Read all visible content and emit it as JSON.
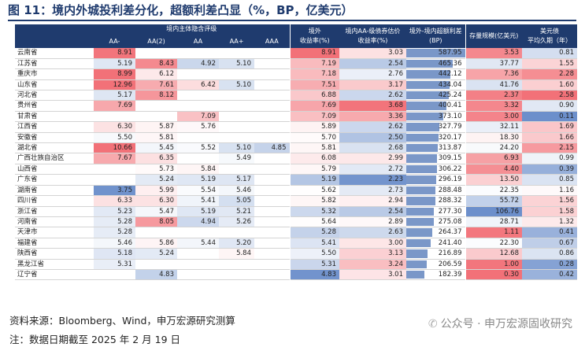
{
  "title": "图 11：境内外城投利差分化，超额利差凸显（%，BP，亿美元）",
  "headers": {
    "group_rating": "境内主体隐含评级",
    "ratings": [
      "AA-",
      "AA(2)",
      "AA",
      "AA+",
      "AAA"
    ],
    "offshore_yield": "境外\n收益率(%)",
    "onshore_yield": "境内AA-级债券估价\n收益率(%)",
    "excess_spread": "境外-境内超额利差\n(BP)",
    "outstanding": "存量规模(亿美元)",
    "duration": "美元债\n平均久期（年）"
  },
  "rows": [
    {
      "name": "云南省",
      "r": [
        "8.91",
        "",
        "",
        "",
        ""
      ],
      "off": "8.91",
      "on": "3.03",
      "sp": "587.95",
      "stock": "3.53",
      "dur": "0.81"
    },
    {
      "name": "江苏省",
      "r": [
        "5.19",
        "8.43",
        "4.92",
        "5.10",
        ""
      ],
      "off": "7.19",
      "on": "2.54",
      "sp": "465.36",
      "stock": "37.77",
      "dur": "1.55"
    },
    {
      "name": "重庆市",
      "r": [
        "8.99",
        "6.12",
        "",
        "",
        ""
      ],
      "off": "7.18",
      "on": "2.76",
      "sp": "442.12",
      "stock": "7.36",
      "dur": "2.28"
    },
    {
      "name": "山东省",
      "r": [
        "12.96",
        "7.61",
        "6.42",
        "5.10",
        ""
      ],
      "off": "7.51",
      "on": "3.17",
      "sp": "434.04",
      "stock": "41.76",
      "dur": "1.60"
    },
    {
      "name": "河北省",
      "r": [
        "5.17",
        "8.12",
        "",
        "",
        ""
      ],
      "off": "6.88",
      "on": "2.62",
      "sp": "425.24",
      "stock": "2.37",
      "dur": "2.58"
    },
    {
      "name": "贵州省",
      "r": [
        "7.69",
        "",
        "",
        "",
        ""
      ],
      "off": "7.69",
      "on": "3.68",
      "sp": "400.41",
      "stock": "3.32",
      "dur": "0.90"
    },
    {
      "name": "甘肃省",
      "r": [
        "",
        "",
        "7.09",
        "",
        ""
      ],
      "off": "7.09",
      "on": "3.36",
      "sp": "373.10",
      "stock": "3.00",
      "dur": "0.11"
    },
    {
      "name": "江西省",
      "r": [
        "6.30",
        "5.87",
        "5.76",
        "",
        ""
      ],
      "off": "5.89",
      "on": "2.62",
      "sp": "327.79",
      "stock": "32.11",
      "dur": "1.69"
    },
    {
      "name": "安徽省",
      "r": [
        "5.50",
        "5.81",
        "",
        "",
        ""
      ],
      "off": "5.70",
      "on": "2.50",
      "sp": "320.17",
      "stock": "18.30",
      "dur": "1.66"
    },
    {
      "name": "湖北省",
      "r": [
        "10.66",
        "5.45",
        "5.52",
        "5.10",
        "4.85"
      ],
      "off": "5.81",
      "on": "2.68",
      "sp": "313.87",
      "stock": "24.20",
      "dur": "2.15"
    },
    {
      "name": "广西壮族自治区",
      "r": [
        "7.67",
        "6.35",
        "",
        "5.49",
        ""
      ],
      "off": "6.08",
      "on": "2.99",
      "sp": "309.15",
      "stock": "6.93",
      "dur": "0.99"
    },
    {
      "name": "山西省",
      "r": [
        "",
        "5.73",
        "5.84",
        "",
        ""
      ],
      "off": "5.79",
      "on": "2.72",
      "sp": "306.22",
      "stock": "4.40",
      "dur": "0.39"
    },
    {
      "name": "广东省",
      "r": [
        "",
        "5.24",
        "5.19",
        "5.17",
        ""
      ],
      "off": "5.19",
      "on": "2.23",
      "sp": "296.19",
      "stock": "13.50",
      "dur": "0.85"
    },
    {
      "name": "湖南省",
      "r": [
        "3.75",
        "5.99",
        "5.54",
        "5.46",
        ""
      ],
      "off": "5.62",
      "on": "2.73",
      "sp": "288.48",
      "stock": "22.35",
      "dur": "1.16"
    },
    {
      "name": "四川省",
      "r": [
        "6.33",
        "6.30",
        "5.41",
        "5.05",
        ""
      ],
      "off": "5.82",
      "on": "2.94",
      "sp": "288.32",
      "stock": "55.72",
      "dur": "1.56"
    },
    {
      "name": "浙江省",
      "r": [
        "5.23",
        "5.47",
        "5.19",
        "5.21",
        ""
      ],
      "off": "5.32",
      "on": "2.54",
      "sp": "277.30",
      "stock": "106.76",
      "dur": "1.58"
    },
    {
      "name": "河南省",
      "r": [
        "5.28",
        "8.05",
        "4.94",
        "5.26",
        ""
      ],
      "off": "5.64",
      "on": "2.89",
      "sp": "275.08",
      "stock": "28.71",
      "dur": "1.32"
    },
    {
      "name": "天津市",
      "r": [
        "5.28",
        "",
        "",
        "",
        ""
      ],
      "off": "5.28",
      "on": "2.63",
      "sp": "264.37",
      "stock": "1.11",
      "dur": "0.41"
    },
    {
      "name": "福建省",
      "r": [
        "5.46",
        "5.86",
        "5.44",
        "5.20",
        ""
      ],
      "off": "5.41",
      "on": "3.00",
      "sp": "241.40",
      "stock": "22.30",
      "dur": "0.67"
    },
    {
      "name": "陕西省",
      "r": [
        "5.18",
        "5.24",
        "",
        "5.84",
        ""
      ],
      "off": "5.50",
      "on": "3.13",
      "sp": "216.89",
      "stock": "12.68",
      "dur": "0.86"
    },
    {
      "name": "黑龙江省",
      "r": [
        "5.31",
        "",
        "",
        "",
        ""
      ],
      "off": "5.31",
      "on": "3.24",
      "sp": "206.59",
      "stock": "1.00",
      "dur": "0.28"
    },
    {
      "name": "辽宁省",
      "r": [
        "",
        "4.83",
        "",
        "",
        ""
      ],
      "off": "4.83",
      "on": "3.01",
      "sp": "182.39",
      "stock": "0.30",
      "dur": "0.42"
    }
  ],
  "footer": {
    "source": "资料来源：Bloomberg、Wind，申万宏源研究测算",
    "note": "注：数据日期截至 2025 年 2 月 19 日",
    "watermark": "公众号 · 申万宏源固收研究"
  }
}
